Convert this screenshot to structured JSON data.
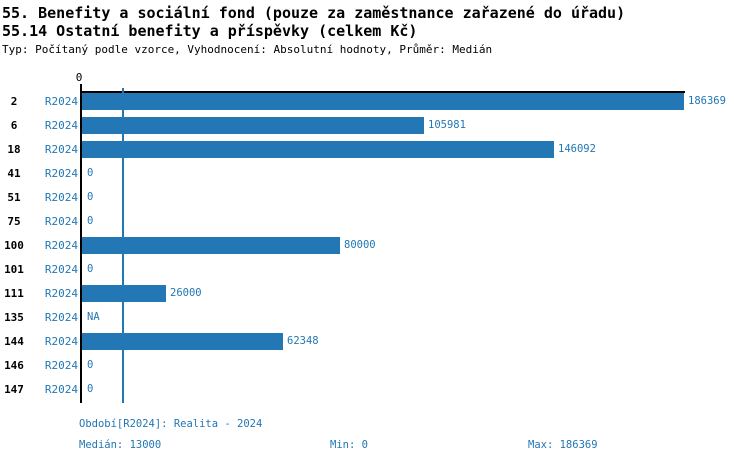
{
  "chart_data": {
    "type": "bar",
    "orientation": "horizontal",
    "title": "55. Benefity a sociální fond (pouze za zaměstnance zařazené do úřadu)",
    "subtitle": "55.14 Ostatní benefity a příspěvky (celkem Kč)",
    "note": "Typ: Počítaný podle vzorce, Vyhodnocení: Absolutní hodnoty, Průměr: Medián",
    "series_label": "R2024",
    "categories": [
      "2",
      "6",
      "18",
      "41",
      "51",
      "75",
      "100",
      "101",
      "111",
      "135",
      "144",
      "146",
      "147"
    ],
    "values": [
      186369,
      105981,
      146092,
      0,
      0,
      0,
      80000,
      0,
      26000,
      null,
      62348,
      0,
      0
    ],
    "value_labels": [
      "186369",
      "105981",
      "146092",
      "0",
      "0",
      "0",
      "80000",
      "0",
      "26000",
      "NA",
      "62348",
      "0",
      "0"
    ],
    "xlim": [
      0,
      186369
    ],
    "x_ticks": [
      {
        "value": 0,
        "label": "0"
      }
    ],
    "reference_line": {
      "value": 13000,
      "label": "Medián"
    },
    "grid": false,
    "legend_position": "none",
    "bar_color": "#2277b4",
    "footer": {
      "period": "Období[R2024]: Realita - 2024",
      "median": "Medián: 13000",
      "min": "Min: 0",
      "max": "Max: 186369"
    }
  }
}
